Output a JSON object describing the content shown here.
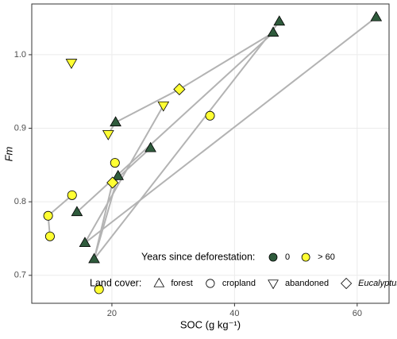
{
  "chart_data": {
    "type": "scatter",
    "x_label": "SOC (g kg⁻¹)",
    "y_label": "Fm",
    "xlim": [
      6.93,
      65.2
    ],
    "ylim": [
      0.662,
      1.069
    ],
    "xticks": [
      20,
      40,
      60
    ],
    "yticks": [
      0.7,
      0.8,
      0.9,
      {
        "value": 1.0,
        "label": "1.0"
      }
    ],
    "grid": true,
    "line_color": "#b3b3b3",
    "series": [
      {
        "shape": "triangle",
        "color": "#2f5b3c",
        "x": [
          63.1,
          47.3,
          46.3,
          20.6,
          26.3,
          21.0,
          14.3,
          15.6,
          17.1
        ],
        "values": [
          1.051,
          1.045,
          1.03,
          0.908,
          0.873,
          0.835,
          0.786,
          0.744,
          0.722
        ]
      },
      {
        "shape": "circle",
        "color": "#ffff33",
        "x": [
          36.0,
          20.5,
          13.5,
          9.6,
          9.9,
          17.9
        ],
        "values": [
          0.917,
          0.853,
          0.809,
          0.781,
          0.753,
          0.681
        ]
      },
      {
        "shape": "triangle-down",
        "color": "#ffff33",
        "x": [
          13.4,
          28.4,
          19.4
        ],
        "values": [
          0.989,
          0.931,
          0.892
        ]
      },
      {
        "shape": "diamond",
        "color": "#ffff33",
        "x": [
          31.0,
          20.1
        ],
        "values": [
          0.953,
          0.826
        ]
      }
    ],
    "connections": [
      {
        "x": [
          63.1,
          15.6
        ],
        "values": [
          1.051,
          0.744
        ]
      },
      {
        "x": [
          47.3,
          17.1
        ],
        "values": [
          1.045,
          0.722
        ]
      },
      {
        "x": [
          46.3,
          31.0,
          20.6,
          19.4
        ],
        "values": [
          1.03,
          0.953,
          0.908,
          0.892
        ]
      },
      {
        "x": [
          46.3,
          14.3
        ],
        "values": [
          1.03,
          0.786
        ]
      },
      {
        "x": [
          28.4,
          15.6
        ],
        "values": [
          0.931,
          0.744
        ]
      },
      {
        "x": [
          13.5,
          9.6,
          9.9
        ],
        "values": [
          0.809,
          0.781,
          0.753
        ]
      },
      {
        "x": [
          26.3,
          20.1,
          17.1
        ],
        "values": [
          0.873,
          0.826,
          0.722
        ]
      },
      {
        "x": [
          21.0,
          17.1
        ],
        "values": [
          0.835,
          0.722
        ]
      }
    ],
    "legend": {
      "years_title": "Years since deforestation:",
      "years": [
        {
          "label": "0",
          "color": "#2f5b3c"
        },
        {
          "label": "> 60",
          "color": "#ffff33"
        }
      ],
      "cover_title": "Land cover:",
      "cover": [
        {
          "label": "forest",
          "shape": "triangle"
        },
        {
          "label": "cropland",
          "shape": "circle"
        },
        {
          "label": "abandoned",
          "shape": "triangle-down"
        },
        {
          "label": "Eucalyptus",
          "shape": "diamond",
          "italic": true
        }
      ]
    }
  }
}
